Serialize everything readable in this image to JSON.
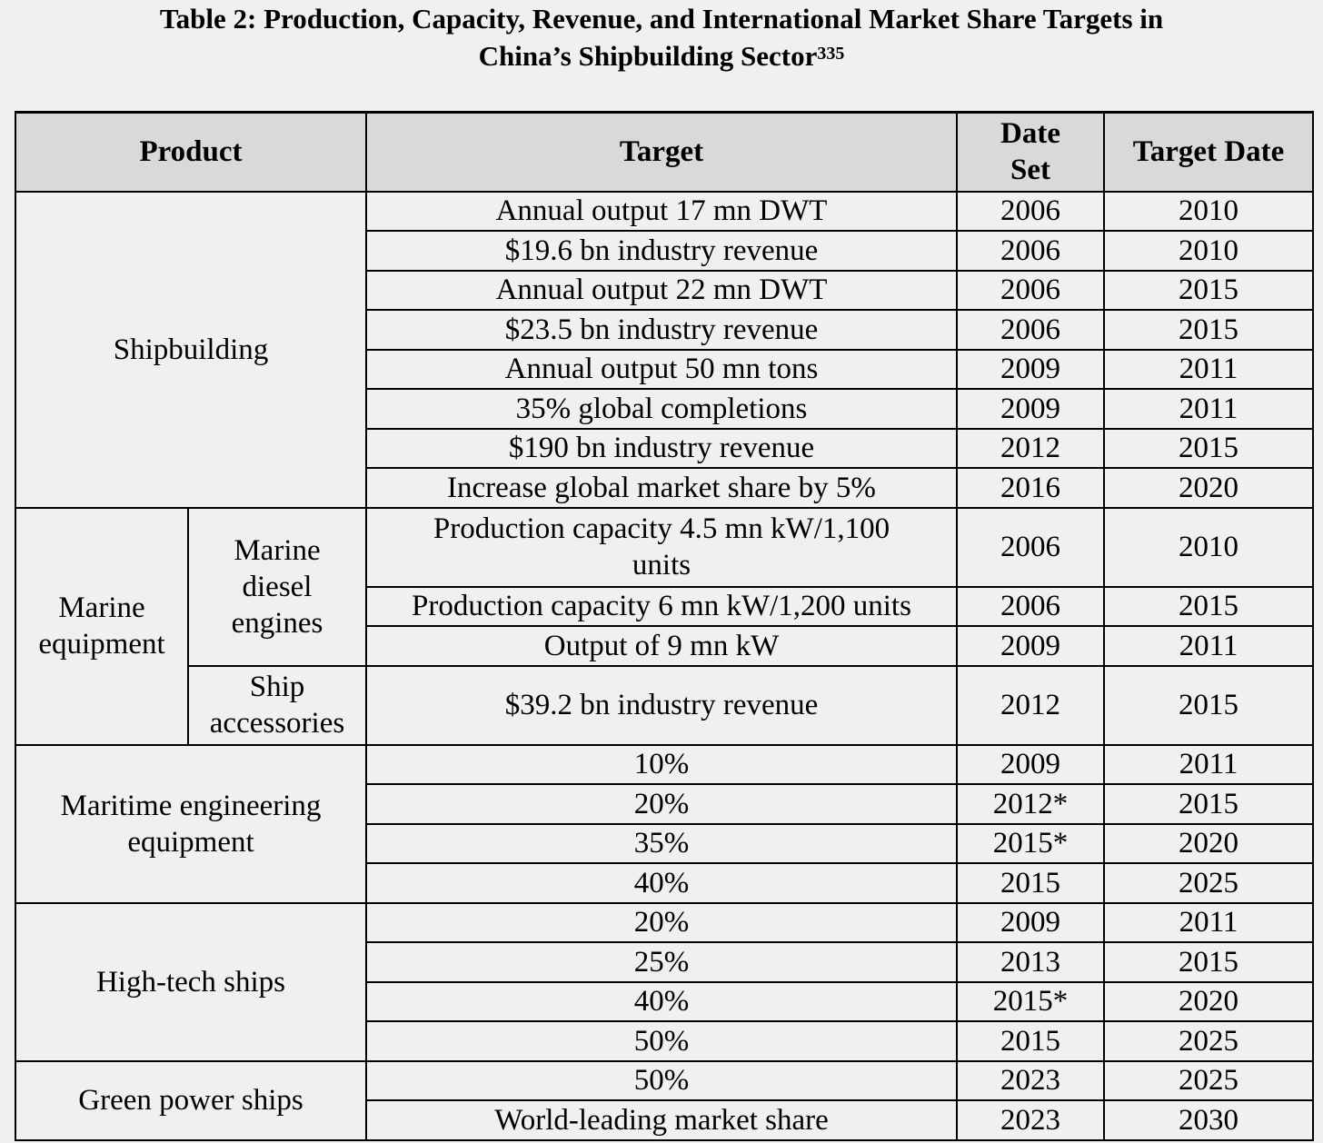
{
  "title": {
    "line1": "Table 2:  Production, Capacity, Revenue, and International Market Share Targets in",
    "line2": "China’s Shipbuilding Sector",
    "footnote": "335"
  },
  "headers": {
    "product": "Product",
    "target": "Target",
    "date_set": [
      "Date",
      "Set"
    ],
    "target_date": "Target Date"
  },
  "groups": {
    "shipbuilding": "Shipbuilding",
    "marine_equipment": [
      "Marine",
      "equipment"
    ],
    "marine_diesel_engines": [
      "Marine",
      "diesel",
      "engines"
    ],
    "ship_accessories": [
      "Ship",
      "accessories"
    ],
    "maritime_engineering": [
      "Maritime engineering",
      "equipment"
    ],
    "high_tech": "High-tech ships",
    "green_power": "Green power ships"
  },
  "rows": [
    {
      "target": "Annual output 17 mn DWT",
      "set": "2006",
      "date": "2010"
    },
    {
      "target": "$19.6 bn industry revenue",
      "set": "2006",
      "date": "2010"
    },
    {
      "target": "Annual output 22 mn DWT",
      "set": "2006",
      "date": "2015"
    },
    {
      "target": "$23.5 bn industry revenue",
      "set": "2006",
      "date": "2015"
    },
    {
      "target": "Annual output 50 mn tons",
      "set": "2009",
      "date": "2011"
    },
    {
      "target": "35% global completions",
      "set": "2009",
      "date": "2011"
    },
    {
      "target": "$190 bn industry revenue",
      "set": "2012",
      "date": "2015"
    },
    {
      "target": "Increase global market share by 5%",
      "set": "2016",
      "date": "2020"
    },
    {
      "target": [
        "Production capacity 4.5 mn kW/1,100",
        "units"
      ],
      "set": "2006",
      "date": "2010"
    },
    {
      "target": "Production capacity 6 mn kW/1,200 units",
      "set": "2006",
      "date": "2015"
    },
    {
      "target": "Output of 9 mn kW",
      "set": "2009",
      "date": "2011"
    },
    {
      "target": "$39.2 bn industry revenue",
      "set": "2012",
      "date": "2015"
    },
    {
      "target": "10%",
      "set": "2009",
      "date": "2011"
    },
    {
      "target": "20%",
      "set": "2012*",
      "date": "2015"
    },
    {
      "target": "35%",
      "set": "2015*",
      "date": "2020"
    },
    {
      "target": "40%",
      "set": "2015",
      "date": "2025"
    },
    {
      "target": "20%",
      "set": "2009",
      "date": "2011"
    },
    {
      "target": "25%",
      "set": "2013",
      "date": "2015"
    },
    {
      "target": "40%",
      "set": "2015*",
      "date": "2020"
    },
    {
      "target": "50%",
      "set": "2015",
      "date": "2025"
    },
    {
      "target": "50%",
      "set": "2023",
      "date": "2025"
    },
    {
      "target": "World-leading market share",
      "set": "2023",
      "date": "2030"
    }
  ]
}
